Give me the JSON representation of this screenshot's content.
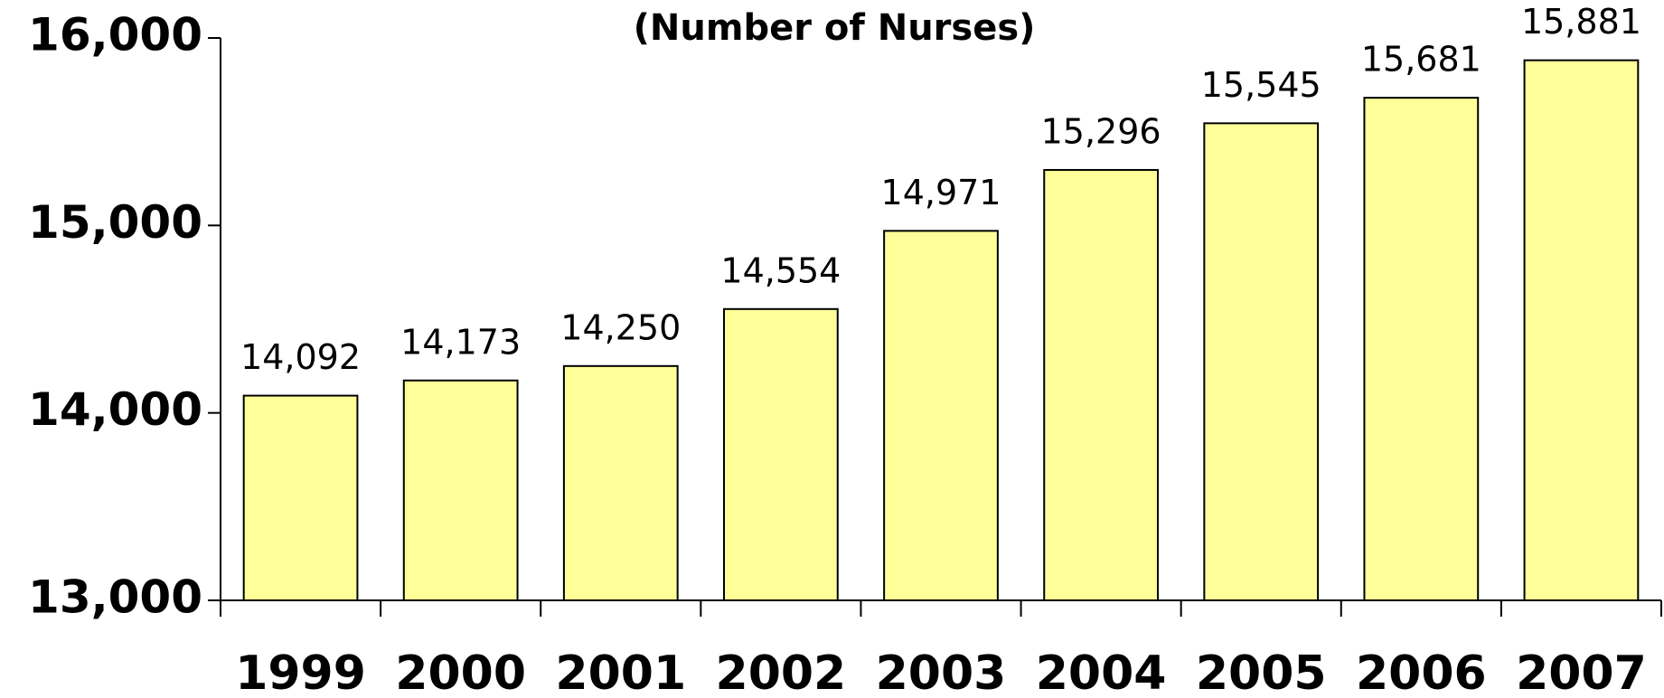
{
  "chart_data": {
    "type": "bar",
    "subtitle": "(Number of Nurses)",
    "categories": [
      "1999",
      "2000",
      "2001",
      "2002",
      "2003",
      "2004",
      "2005",
      "2006",
      "2007"
    ],
    "values": [
      14092,
      14173,
      14250,
      14554,
      14971,
      15296,
      15545,
      15681,
      15881
    ],
    "value_labels": [
      "14,092",
      "14,173",
      "14,250",
      "14,554",
      "14,971",
      "15,296",
      "15,545",
      "15,681",
      "15,881"
    ],
    "color": "#ffff99",
    "ylim": [
      13000,
      16000
    ],
    "yticks": [
      {
        "value": 13000,
        "label": "13,000"
      },
      {
        "value": 14000,
        "label": "14,000"
      },
      {
        "value": 15000,
        "label": "15,000"
      },
      {
        "value": 16000,
        "label": "16,000"
      }
    ],
    "grid": false
  }
}
